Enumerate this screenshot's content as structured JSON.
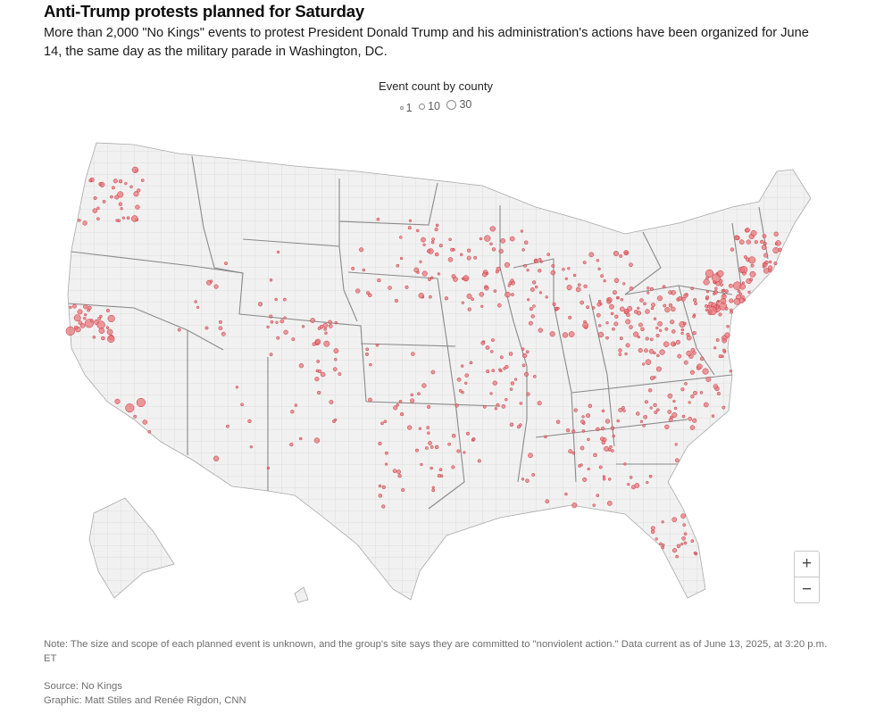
{
  "header": {
    "headline": "Anti-Trump protests planned for Saturday",
    "dek": "More than 2,000 \"No Kings\" events to protest President Donald Trump and his administration's actions have been organized for June 14, the same day as the military parade in Washington, DC."
  },
  "legend": {
    "title": "Event count by county",
    "sizes": [
      "1",
      "10",
      "30"
    ]
  },
  "colors": {
    "land": "#f1f1f1",
    "county_lines": "#c9c9c9",
    "state_lines": "#8a8a8a",
    "dot_fill": "#e8777b",
    "dot_stroke": "#c8363d"
  },
  "controls": {
    "zoom_in": "+",
    "zoom_out": "−"
  },
  "footer": {
    "note": "Note: The size and scope of each planned event is unknown, and the group's site says they are committed to \"nonviolent action.\" Data current as of June 13, 2025, at 3:20 p.m. ET",
    "source": "Source: No Kings",
    "credit": "Graphic: Matt Stiles and Renée Rigdon, CNN"
  }
}
